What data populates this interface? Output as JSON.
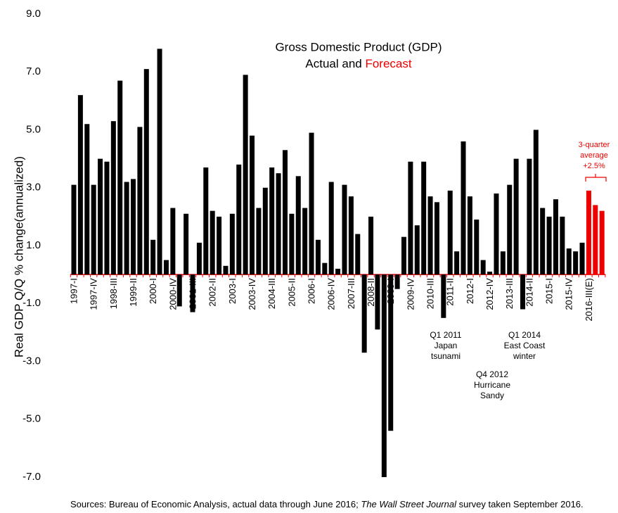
{
  "chart_data": {
    "type": "bar",
    "title": "Gross Domestic Product (GDP)",
    "subtitle": [
      "Actual and",
      "Forecast"
    ],
    "y_label": "Real GDP Q/Q % change(annualized)",
    "categories": [
      "1997-I",
      null,
      null,
      "1997-IV",
      null,
      null,
      "1998-III",
      null,
      null,
      "1999-II",
      null,
      null,
      "2000-I",
      null,
      null,
      "2000-IV",
      null,
      null,
      "2001-III",
      null,
      null,
      "2002-II",
      null,
      null,
      "2003-I",
      null,
      null,
      "2003-IV",
      null,
      null,
      "2004-III",
      null,
      null,
      "2005-II",
      null,
      null,
      "2006-I",
      null,
      null,
      "2006-IV",
      null,
      null,
      "2007-III",
      null,
      null,
      "2008-II",
      null,
      null,
      "2009-I",
      null,
      null,
      "2009-IV",
      null,
      null,
      "2010-III",
      null,
      null,
      "2011-II",
      null,
      null,
      "2012-I",
      null,
      null,
      "2012-IV",
      null,
      null,
      "2013-III",
      null,
      null,
      "2014-II",
      null,
      null,
      "2015-I",
      null,
      null,
      "2015-IV",
      null,
      null,
      "2016-III(E)",
      null,
      null
    ],
    "series": [
      {
        "color": "#000000",
        "values": [
          3.1,
          6.2,
          5.2,
          3.1,
          4.0,
          3.9,
          5.3,
          6.7,
          3.2,
          3.3,
          5.1,
          7.1,
          1.2,
          7.8,
          0.5,
          2.3,
          -1.1,
          2.1,
          -1.3,
          1.1,
          3.7,
          2.2,
          2.0,
          0.3,
          2.1,
          3.8,
          6.9,
          4.8,
          2.3,
          3.0,
          3.7,
          3.5,
          4.3,
          2.1,
          3.4,
          2.3,
          4.9,
          1.2,
          0.4,
          3.2,
          0.2,
          3.1,
          2.7,
          1.4,
          -2.7,
          2.0,
          -1.9,
          -7.0,
          -5.4,
          -0.5,
          1.3,
          3.9,
          1.7,
          3.9,
          2.7,
          2.5,
          -1.5,
          2.9,
          0.8,
          4.6,
          2.7,
          1.9,
          0.5,
          0.1,
          2.8,
          0.8,
          3.1,
          4.0,
          -1.2,
          4.0,
          5.0,
          2.3,
          2.0,
          2.6,
          2.0,
          0.9,
          0.8,
          1.1,
          null,
          null,
          null
        ]
      },
      {
        "color": "#ee0000",
        "values": [
          null,
          null,
          null,
          null,
          null,
          null,
          null,
          null,
          null,
          null,
          null,
          null,
          null,
          null,
          null,
          null,
          null,
          null,
          null,
          null,
          null,
          null,
          null,
          null,
          null,
          null,
          null,
          null,
          null,
          null,
          null,
          null,
          null,
          null,
          null,
          null,
          null,
          null,
          null,
          null,
          null,
          null,
          null,
          null,
          null,
          null,
          null,
          null,
          null,
          null,
          null,
          null,
          null,
          null,
          null,
          null,
          null,
          null,
          null,
          null,
          null,
          null,
          null,
          null,
          null,
          null,
          null,
          null,
          null,
          null,
          null,
          null,
          null,
          null,
          null,
          null,
          null,
          null,
          2.9,
          2.4,
          2.2
        ]
      }
    ],
    "ylim": [
      -7,
      9
    ],
    "yticks": [
      {
        "value": 9,
        "label": "9.0"
      },
      {
        "value": 7,
        "label": "7.0"
      },
      {
        "value": 5,
        "label": "5.0"
      },
      {
        "value": 3,
        "label": "3.0"
      },
      {
        "value": 1,
        "label": "1.0"
      },
      {
        "value": -1,
        "label": "-1.0"
      },
      {
        "value": -3,
        "label": "-3.0"
      },
      {
        "value": -5,
        "label": "-5.0"
      },
      {
        "value": -7,
        "label": "-7.0"
      }
    ],
    "grid": false,
    "axis_color": "#ee0000",
    "annotations": [
      {
        "lines": [
          "Q1 2011",
          "Japan",
          "tsunami"
        ]
      },
      {
        "lines": [
          "Q4 2012",
          "Hurricane",
          "Sandy"
        ]
      },
      {
        "lines": [
          "Q1 2014",
          "East Coast",
          "winter"
        ]
      },
      {
        "lines": [
          "3-quarter",
          "average",
          "+2.5%"
        ]
      }
    ],
    "source": [
      "Sources: Bureau of Economic Analysis, actual data through June 2016; ",
      "The Wall Street Journal",
      " survey taken September 2016."
    ]
  }
}
